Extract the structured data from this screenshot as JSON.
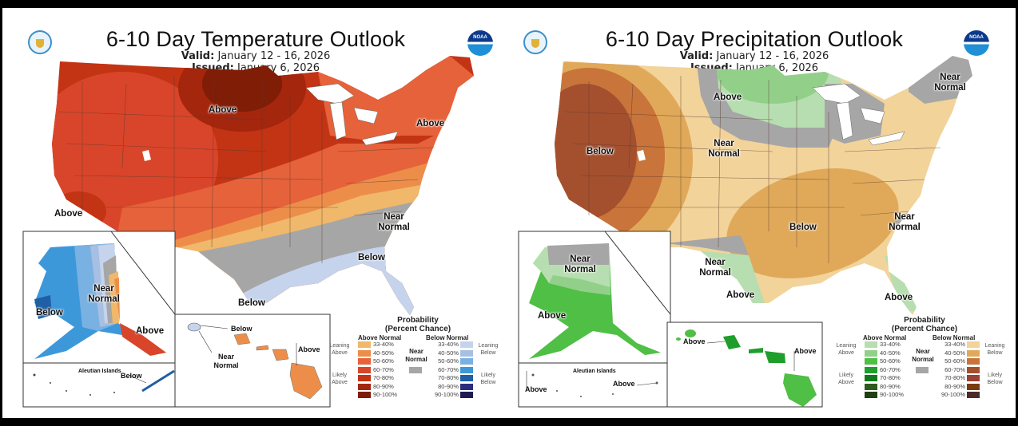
{
  "temperature": {
    "title": "6-10 Day Temperature Outlook",
    "valid_label": "Valid:",
    "valid_value": "January 12 - 16, 2026",
    "issued_label": "Issued:",
    "issued_value": "January 6, 2026",
    "logos": {
      "left": "doc-seal-icon",
      "right": "noaa-logo-icon",
      "noaa_text": "NOAA"
    },
    "conus_labels": {
      "north_central": "Above",
      "southern_california": "Above",
      "northeast": "Above",
      "southeast_near": "Near Normal",
      "gulf_below": "Below",
      "texas_below": "Below"
    },
    "alaska_labels": {
      "west": "Below",
      "central": "Near Normal",
      "southeast": "Above",
      "aleutian_title": "Aleutian Islands",
      "aleutian": "Below"
    },
    "hawaii_labels": {
      "kauai_below": "Below",
      "kauai_near": "Near Normal",
      "big_island": "Above"
    },
    "legend": {
      "title_line1": "Probability",
      "title_line2": "(Percent Chance)",
      "above_header": "Above Normal",
      "below_header": "Below Normal",
      "near_label": "Near Normal",
      "near_color": "#a6a6a6",
      "leaning_above": "Leaning Above",
      "likely_above": "Likely Above",
      "leaning_below": "Leaning Below",
      "likely_below": "Likely Below",
      "ranges": [
        "33-40%",
        "40-50%",
        "50-60%",
        "60-70%",
        "70-80%",
        "80-90%",
        "90-100%"
      ],
      "above_colors": [
        "#f0b86a",
        "#ec8e4a",
        "#e6623a",
        "#d9452a",
        "#c23414",
        "#a3260d",
        "#7f1d06"
      ],
      "below_colors": [
        "#c6d3ec",
        "#a7bfe2",
        "#79b1e3",
        "#3d98da",
        "#1f5fa6",
        "#2c2c7e",
        "#1e1a55"
      ]
    }
  },
  "precipitation": {
    "title": "6-10 Day Precipitation Outlook",
    "valid_label": "Valid:",
    "valid_value": "January 12 - 16, 2026",
    "issued_label": "Issued:",
    "issued_value": "January 6, 2026",
    "logos": {
      "left": "doc-seal-icon",
      "right": "noaa-logo-icon",
      "noaa_text": "NOAA"
    },
    "conus_labels": {
      "west_below": "Below",
      "north_plains_above": "Above",
      "north_plains_near": "Near Normal",
      "new_england_near": "Near Normal",
      "south_central_below": "Below",
      "carolinas_near": "Near Normal",
      "texas_near": "Near Normal",
      "texas_above": "Above",
      "florida_above": "Above"
    },
    "alaska_labels": {
      "north": "Near Normal",
      "south": "Above",
      "aleutian_title": "Aleutian Islands",
      "aleutian_west": "Above",
      "aleutian_east": "Above"
    },
    "hawaii_labels": {
      "oahu": "Above",
      "big_island": "Above"
    },
    "legend": {
      "title_line1": "Probability",
      "title_line2": "(Percent Chance)",
      "above_header": "Above Normal",
      "below_header": "Below Normal",
      "near_label": "Near Normal",
      "near_color": "#a6a6a6",
      "leaning_above": "Leaning Above",
      "likely_above": "Likely Above",
      "leaning_below": "Leaning Below",
      "likely_below": "Likely Below",
      "ranges": [
        "33-40%",
        "40-50%",
        "50-60%",
        "60-70%",
        "70-80%",
        "80-90%",
        "90-100%"
      ],
      "above_colors": [
        "#b7deb0",
        "#92d08a",
        "#4fbf45",
        "#1f9e2c",
        "#0f7a1c",
        "#2e5a1d",
        "#1f4010"
      ],
      "below_colors": [
        "#f2d39a",
        "#e0a95a",
        "#c9743a",
        "#a4502f",
        "#9a4034",
        "#7a3b0e",
        "#4a2a2a"
      ]
    }
  }
}
